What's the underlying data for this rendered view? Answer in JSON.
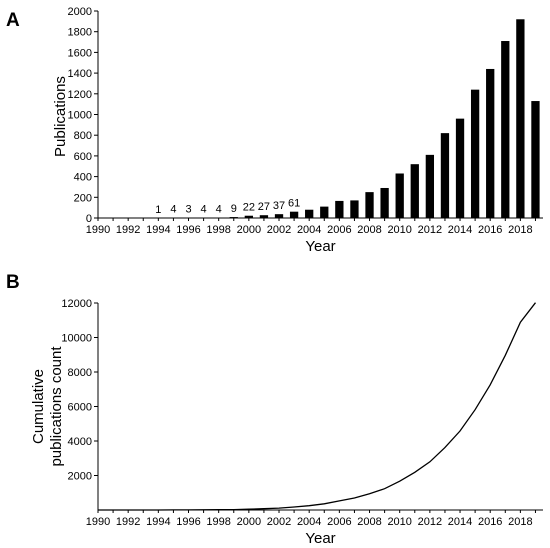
{
  "panels": [
    {
      "letter": "A"
    },
    {
      "letter": "B"
    }
  ],
  "chart_data": [
    {
      "type": "bar",
      "xlabel": "Year",
      "ylabel": "Publications",
      "x": [
        1990,
        1991,
        1992,
        1993,
        1994,
        1995,
        1996,
        1997,
        1998,
        1999,
        2000,
        2001,
        2002,
        2003,
        2004,
        2005,
        2006,
        2007,
        2008,
        2009,
        2010,
        2011,
        2012,
        2013,
        2014,
        2015,
        2016,
        2017,
        2018,
        2019
      ],
      "values": [
        0,
        0,
        0,
        0,
        1,
        4,
        3,
        4,
        4,
        9,
        22,
        27,
        37,
        61,
        80,
        110,
        165,
        170,
        250,
        290,
        430,
        520,
        610,
        820,
        960,
        1240,
        1440,
        1710,
        1920,
        1130
      ],
      "data_labels": [
        "",
        "",
        "",
        "",
        "1",
        "4",
        "3",
        "4",
        "4",
        "9",
        "22",
        "27",
        "37",
        "61",
        "",
        "",
        "",
        "",
        "",
        "",
        "",
        "",
        "",
        "",
        "",
        "",
        "",
        "",
        "",
        ""
      ],
      "ylim": [
        0,
        2000
      ],
      "yticks": [
        0,
        200,
        400,
        600,
        800,
        1000,
        1200,
        1400,
        1600,
        1800,
        2000
      ],
      "xticks": [
        1990,
        1992,
        1994,
        1996,
        1998,
        2000,
        2002,
        2004,
        2006,
        2008,
        2010,
        2012,
        2014,
        2016,
        2018
      ],
      "bar_color": "#000000"
    },
    {
      "type": "line",
      "xlabel": "Year",
      "ylabel_lines": [
        "Cumulative",
        "publications count"
      ],
      "x": [
        1990,
        1991,
        1992,
        1993,
        1994,
        1995,
        1996,
        1997,
        1998,
        1999,
        2000,
        2001,
        2002,
        2003,
        2004,
        2005,
        2006,
        2007,
        2008,
        2009,
        2010,
        2011,
        2012,
        2013,
        2014,
        2015,
        2016,
        2017,
        2018,
        2019
      ],
      "y": [
        0,
        0,
        0,
        0,
        1,
        5,
        8,
        12,
        16,
        25,
        47,
        74,
        111,
        172,
        252,
        362,
        527,
        697,
        947,
        1237,
        1667,
        2187,
        2797,
        3617,
        4577,
        5817,
        7257,
        8967,
        10887,
        12017
      ],
      "ylim": [
        0,
        12000
      ],
      "yticks": [
        2000,
        4000,
        6000,
        8000,
        10000,
        12000
      ],
      "xticks": [
        1990,
        1992,
        1994,
        1996,
        1998,
        2000,
        2002,
        2004,
        2006,
        2008,
        2010,
        2012,
        2014,
        2016,
        2018
      ],
      "line_color": "#000000"
    }
  ]
}
